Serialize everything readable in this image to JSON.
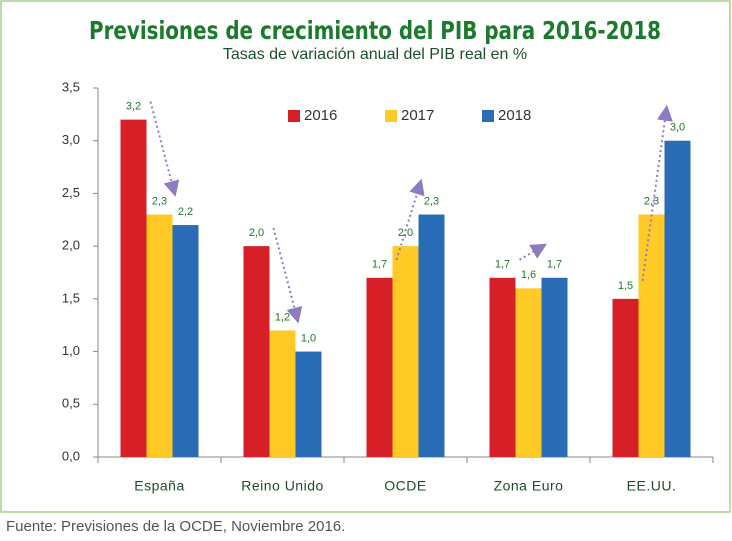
{
  "chart_data": {
    "type": "bar",
    "title": "Previsiones de crecimiento del PIB para 2016-2018",
    "subtitle": "Tasas de variación anual del PIB real en %",
    "source": "Fuente: Previsiones de la OCDE, Noviembre 2016.",
    "categories": [
      "España",
      "Reino Unido",
      "OCDE",
      "Zona Euro",
      "EE.UU."
    ],
    "series": [
      {
        "name": "2016",
        "color": "#d71f28",
        "values": [
          3.2,
          2.0,
          1.7,
          1.7,
          1.5
        ],
        "value_labels": [
          "3,2",
          "2,0",
          "1,7",
          "1,7",
          "1,5"
        ]
      },
      {
        "name": "2017",
        "color": "#ffc926",
        "values": [
          2.3,
          1.2,
          2.0,
          1.6,
          2.3
        ],
        "value_labels": [
          "2,3",
          "1,2",
          "2,0",
          "1,6",
          "2,3"
        ]
      },
      {
        "name": "2018",
        "color": "#2a6cb6",
        "values": [
          2.2,
          1.0,
          2.3,
          1.7,
          3.0
        ],
        "value_labels": [
          "2,2",
          "1,0",
          "2,3",
          "1,7",
          "3,0"
        ]
      }
    ],
    "ylim": [
      0,
      3.5
    ],
    "yticks": [
      {
        "value": 0,
        "label": "0,0"
      },
      {
        "value": 0.5,
        "label": "0,5"
      },
      {
        "value": 1,
        "label": "1,0"
      },
      {
        "value": 1.5,
        "label": "1,5"
      },
      {
        "value": 2,
        "label": "2,0"
      },
      {
        "value": 2.5,
        "label": "2,5"
      },
      {
        "value": 3,
        "label": "3,0"
      },
      {
        "value": 3.5,
        "label": "3,5"
      }
    ],
    "grid": false,
    "legend": "top"
  }
}
